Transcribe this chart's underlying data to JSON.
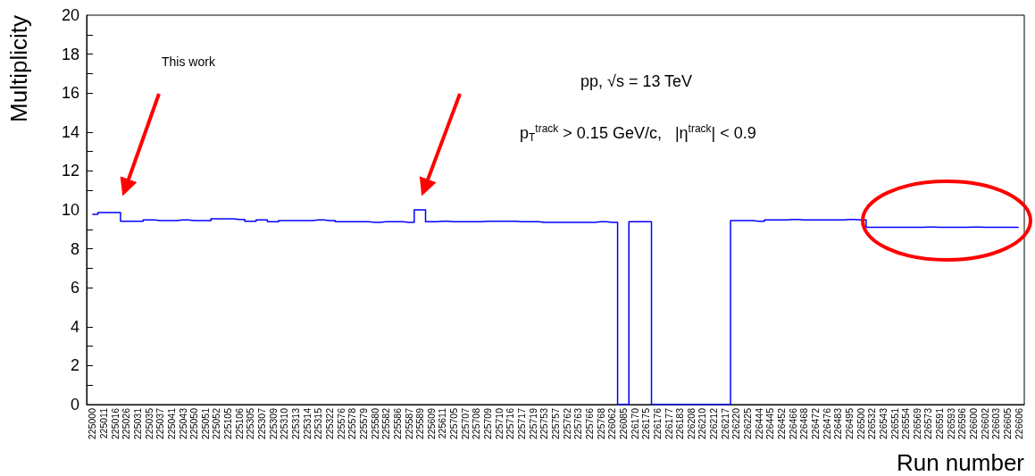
{
  "chart_data": {
    "type": "step",
    "xlabel": "Run number",
    "ylabel": "Multiplicity",
    "annotations": [
      "This work",
      "pp, √s = 13 TeV",
      "p$_{T}$$^{track}$ > 0.15 GeV/c,   |η$^{track}$| < 0.9"
    ],
    "categories": [
      "225000",
      "225011",
      "225016",
      "225026",
      "225031",
      "225035",
      "225037",
      "225041",
      "225043",
      "225050",
      "225051",
      "225052",
      "225105",
      "225106",
      "225305",
      "225307",
      "225309",
      "225310",
      "225313",
      "225314",
      "225315",
      "225322",
      "225576",
      "225578",
      "225579",
      "225580",
      "225582",
      "225586",
      "225587",
      "225589",
      "225609",
      "225611",
      "225705",
      "225707",
      "225708",
      "225709",
      "225710",
      "225716",
      "225717",
      "225719",
      "225753",
      "225757",
      "225762",
      "225763",
      "225766",
      "225768",
      "226062",
      "226085",
      "226170",
      "226175",
      "226176",
      "226177",
      "226183",
      "226208",
      "226210",
      "226212",
      "226217",
      "226220",
      "226225",
      "226444",
      "226445",
      "226452",
      "226466",
      "226468",
      "226472",
      "226476",
      "226483",
      "226495",
      "226500",
      "226532",
      "226543",
      "226551",
      "226554",
      "226569",
      "226573",
      "226591",
      "226593",
      "226596",
      "226600",
      "226602",
      "226603",
      "226605",
      "226606"
    ],
    "series": [
      {
        "color": "#0000ff",
        "values": [
          9.77,
          9.86,
          9.86,
          9.42,
          9.42,
          9.48,
          9.45,
          9.45,
          9.48,
          9.45,
          9.45,
          9.54,
          9.54,
          9.51,
          9.42,
          9.48,
          9.39,
          9.45,
          9.45,
          9.45,
          9.48,
          9.45,
          9.39,
          9.39,
          9.39,
          9.36,
          9.39,
          9.39,
          9.36,
          10.0,
          9.39,
          9.42,
          9.39,
          9.39,
          9.39,
          9.42,
          9.42,
          9.42,
          9.39,
          9.39,
          9.36,
          9.36,
          9.36,
          9.36,
          9.36,
          9.39,
          9.36,
          0,
          9.39,
          9.39,
          0,
          0,
          0,
          0,
          0,
          0,
          0,
          9.45,
          9.45,
          9.42,
          9.48,
          9.48,
          9.51,
          9.48,
          9.48,
          9.48,
          9.48,
          9.51,
          9.48,
          9.1,
          9.1,
          9.1,
          9.1,
          9.1,
          9.12,
          9.1,
          9.1,
          9.1,
          9.12,
          9.1,
          9.1,
          9.1,
          9.1
        ]
      }
    ],
    "ylim": [
      0,
      20
    ],
    "yticks": [
      0,
      2,
      4,
      6,
      8,
      10,
      12,
      14,
      16,
      18,
      20
    ],
    "grid": false,
    "marker": "none",
    "line_style": "solid"
  }
}
